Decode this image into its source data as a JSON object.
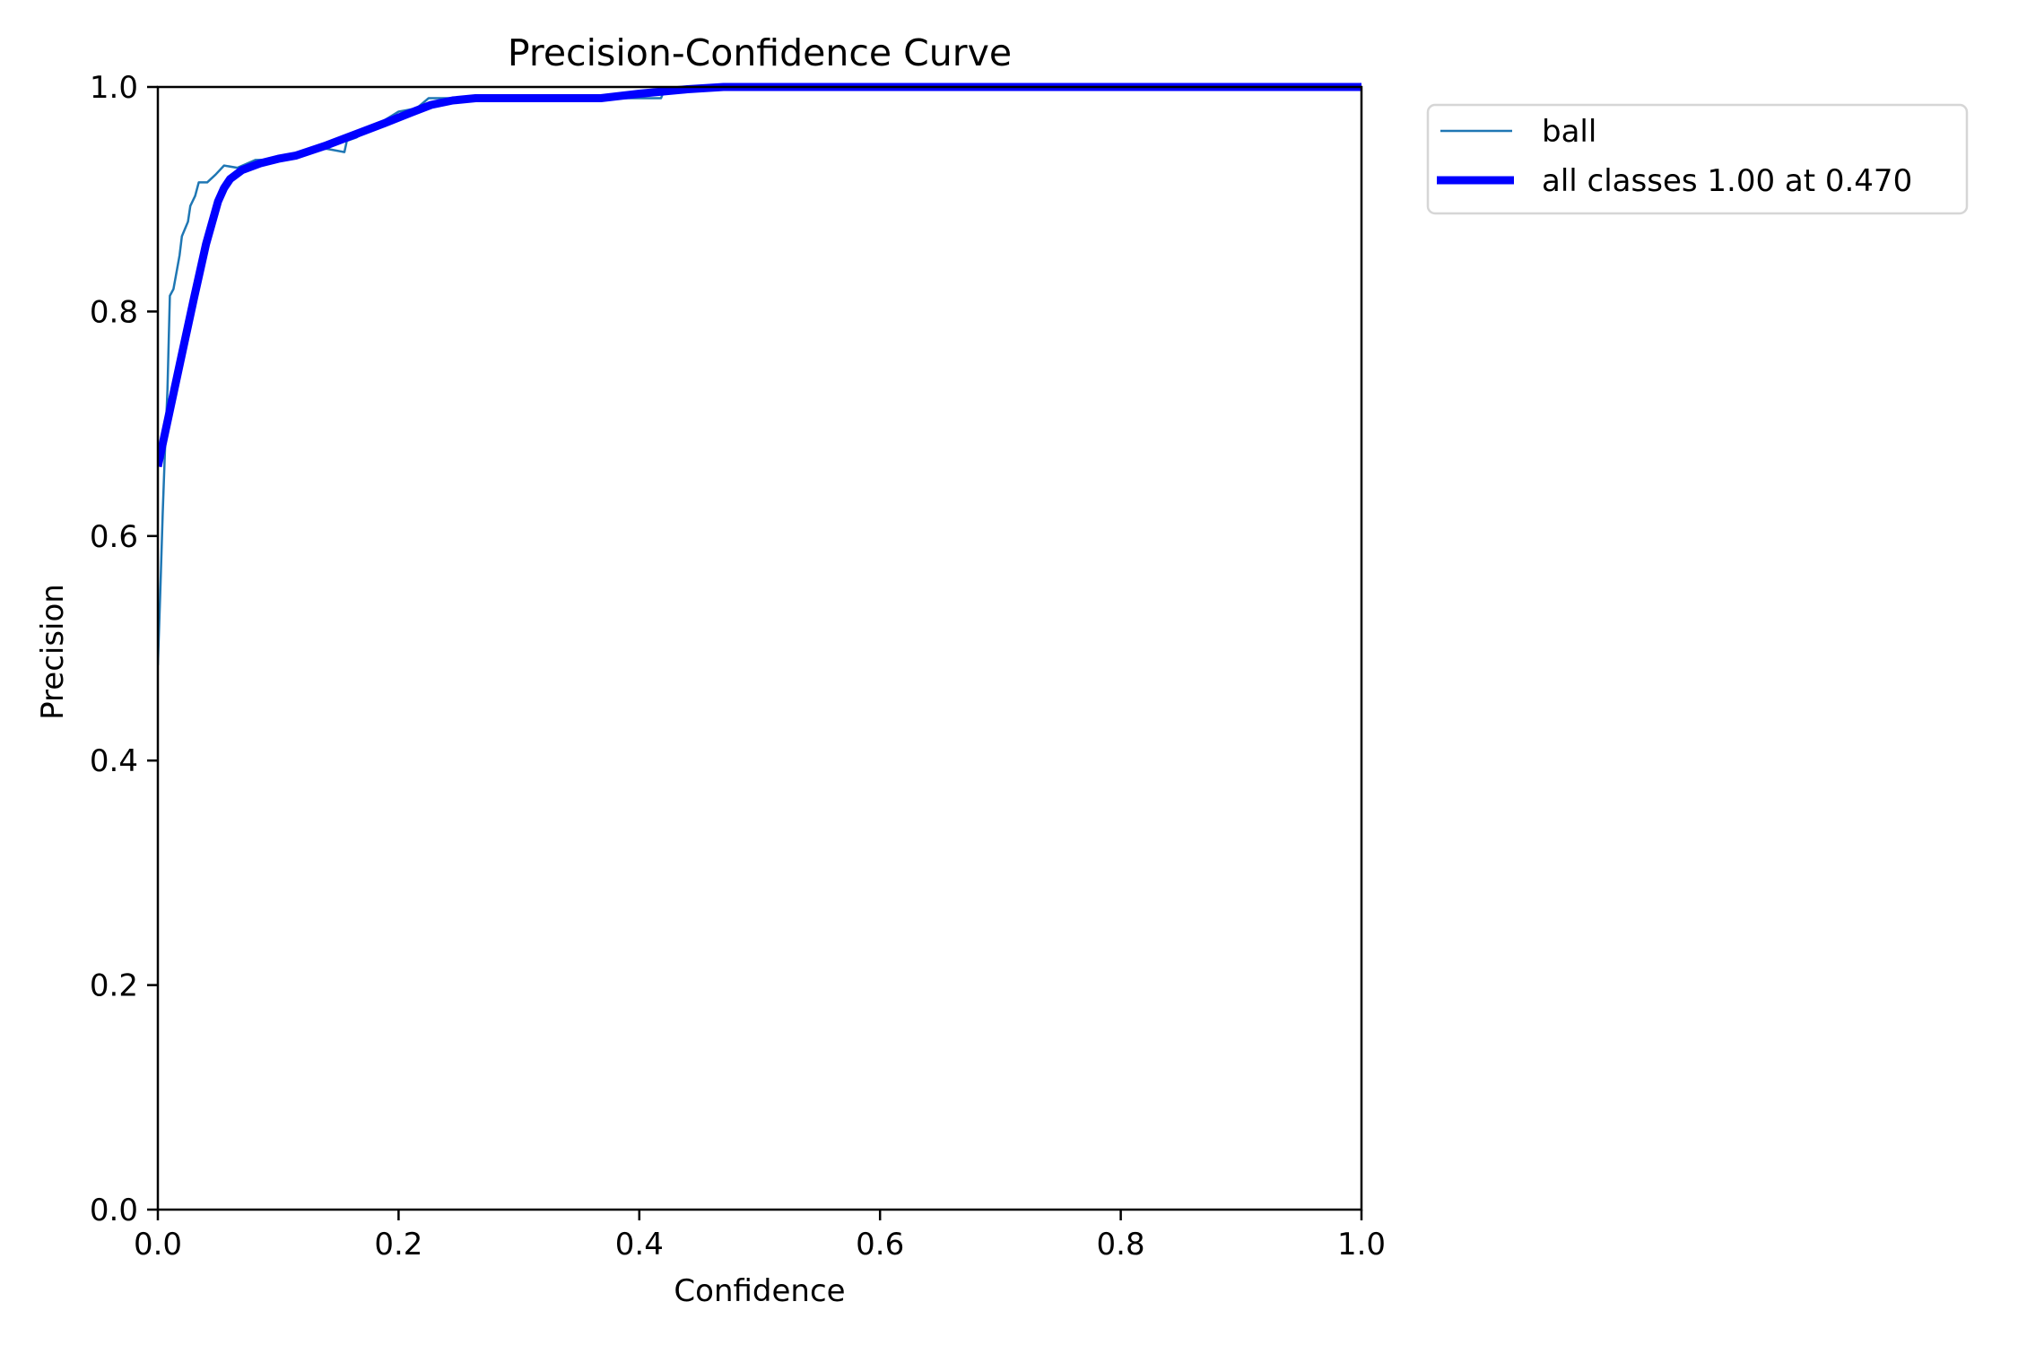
{
  "chart_data": {
    "type": "line",
    "title": "Precision-Confidence Curve",
    "xlabel": "Confidence",
    "ylabel": "Precision",
    "xlim": [
      0.0,
      1.0
    ],
    "ylim": [
      0.0,
      1.0
    ],
    "xticks": [
      "0.0",
      "0.2",
      "0.4",
      "0.6",
      "0.8",
      "1.0"
    ],
    "yticks": [
      "0.0",
      "0.2",
      "0.4",
      "0.6",
      "0.8",
      "1.0"
    ],
    "grid": false,
    "legend_position": "upper right, outside plot",
    "series": [
      {
        "name": "ball",
        "color": "#1f77b4",
        "linewidth": 1,
        "x": [
          0.0,
          0.002,
          0.004,
          0.006,
          0.008,
          0.01,
          0.013,
          0.016,
          0.018,
          0.02,
          0.025,
          0.027,
          0.031,
          0.034,
          0.041,
          0.048,
          0.055,
          0.066,
          0.081,
          0.09,
          0.1,
          0.12,
          0.14,
          0.155,
          0.157,
          0.165,
          0.18,
          0.2,
          0.215,
          0.225,
          0.25,
          0.3,
          0.35,
          0.37,
          0.4,
          0.418,
          0.42,
          0.47,
          0.5,
          0.6,
          0.7,
          0.8,
          0.9,
          1.0
        ],
        "y": [
          0.485,
          0.55,
          0.62,
          0.68,
          0.73,
          0.814,
          0.82,
          0.838,
          0.85,
          0.867,
          0.88,
          0.894,
          0.903,
          0.915,
          0.915,
          0.922,
          0.93,
          0.928,
          0.935,
          0.935,
          0.937,
          0.942,
          0.945,
          0.942,
          0.952,
          0.955,
          0.965,
          0.978,
          0.981,
          0.99,
          0.99,
          0.99,
          0.99,
          0.99,
          0.99,
          0.99,
          0.995,
          1.0,
          1.0,
          1.0,
          1.0,
          1.0,
          1.0,
          1.0
        ]
      },
      {
        "name": "all classes 1.00 at 0.470",
        "color": "#0000ff",
        "linewidth": 3,
        "x": [
          0.0,
          0.01,
          0.02,
          0.03,
          0.04,
          0.05,
          0.055,
          0.06,
          0.07,
          0.085,
          0.1,
          0.115,
          0.14,
          0.167,
          0.189,
          0.21,
          0.227,
          0.245,
          0.264,
          0.3,
          0.34,
          0.368,
          0.4,
          0.44,
          0.47,
          0.5,
          0.6,
          0.7,
          0.8,
          0.9,
          1.0
        ],
        "y": [
          0.662,
          0.712,
          0.762,
          0.812,
          0.86,
          0.898,
          0.91,
          0.918,
          0.926,
          0.932,
          0.936,
          0.939,
          0.948,
          0.959,
          0.968,
          0.977,
          0.984,
          0.988,
          0.99,
          0.99,
          0.99,
          0.99,
          0.994,
          0.998,
          1.0,
          1.0,
          1.0,
          1.0,
          1.0,
          1.0,
          1.0
        ]
      }
    ],
    "annotations": [
      "all classes 1.00 at 0.470"
    ]
  }
}
